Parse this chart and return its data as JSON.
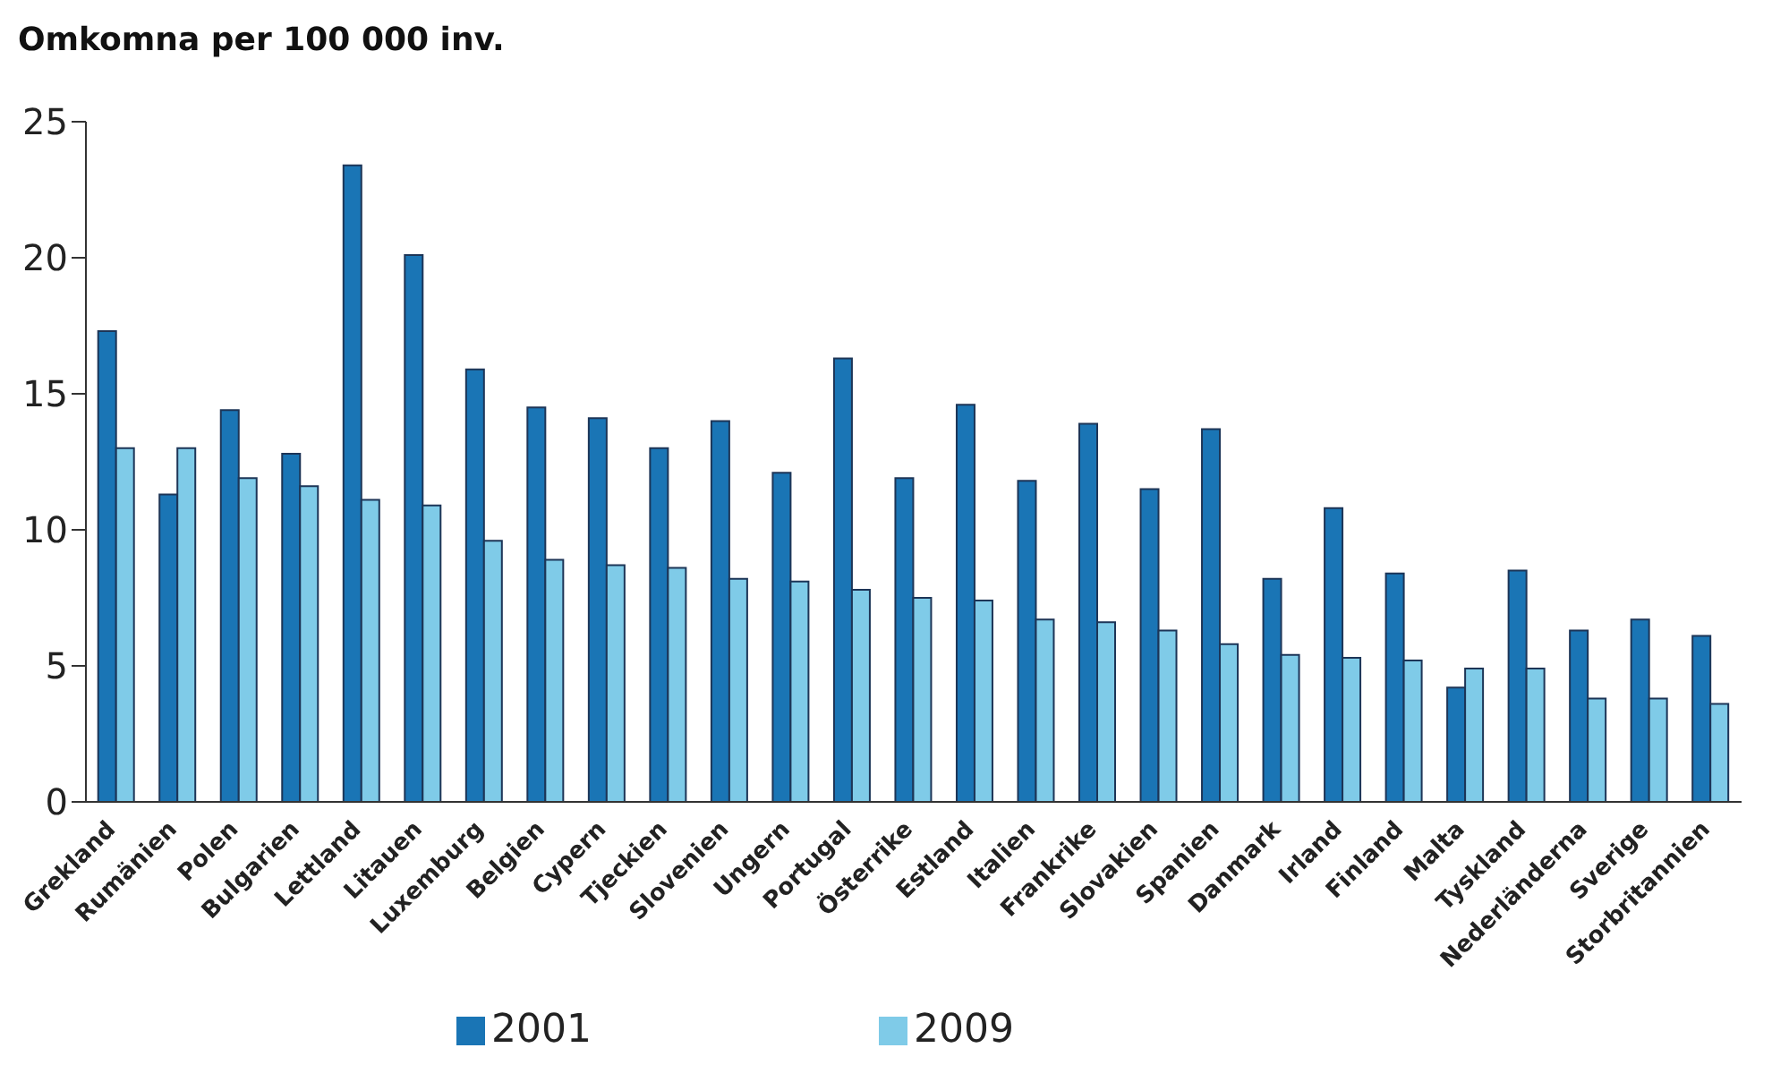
{
  "chart_data": {
    "type": "bar",
    "title": "Omkomna per 100 000 inv.",
    "categories": [
      "Grekland",
      "Rumänien",
      "Polen",
      "Bulgarien",
      "Lettland",
      "Litauen",
      "Luxemburg",
      "Belgien",
      "Cypern",
      "Tjeckien",
      "Slovenien",
      "Ungern",
      "Portugal",
      "Österrike",
      "Estland",
      "Italien",
      "Frankrike",
      "Slovakien",
      "Spanien",
      "Danmark",
      "Irland",
      "Finland",
      "Malta",
      "Tyskland",
      "Nederländerna",
      "Sverige",
      "Storbritannien"
    ],
    "series": [
      {
        "name": "2001",
        "color": "#1a75b5",
        "values": [
          17.3,
          11.3,
          14.4,
          12.8,
          23.4,
          20.1,
          15.9,
          14.5,
          14.1,
          13.0,
          14.0,
          12.1,
          16.3,
          11.9,
          14.6,
          11.8,
          13.9,
          11.5,
          13.7,
          8.2,
          10.8,
          8.4,
          4.2,
          8.5,
          6.3,
          6.7,
          6.1
        ]
      },
      {
        "name": "2009",
        "color": "#7fcbe8",
        "values": [
          13.0,
          13.0,
          11.9,
          11.6,
          11.1,
          10.9,
          9.6,
          8.9,
          8.7,
          8.6,
          8.2,
          8.1,
          7.8,
          7.5,
          7.4,
          6.7,
          6.6,
          6.3,
          5.8,
          5.4,
          5.3,
          5.2,
          4.9,
          4.9,
          3.8,
          3.8,
          3.6
        ]
      }
    ],
    "ylim": [
      0,
      25
    ],
    "yticks": [
      0,
      5,
      10,
      15,
      20,
      25
    ],
    "legend": "bottom"
  }
}
